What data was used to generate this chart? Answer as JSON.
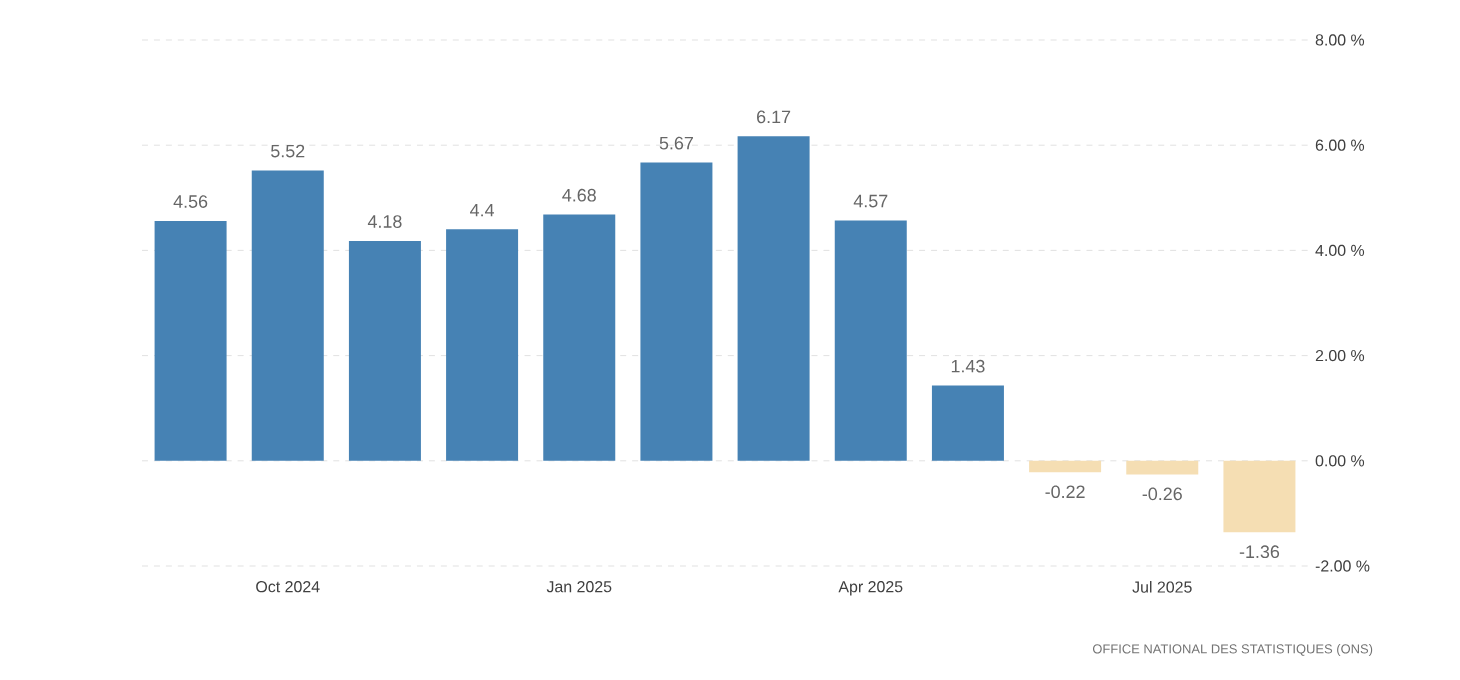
{
  "chart_data": {
    "type": "bar",
    "categories": [
      null,
      "Oct 2024",
      null,
      null,
      "Jan 2025",
      null,
      null,
      "Apr 2025",
      null,
      null,
      "Jul 2025",
      null
    ],
    "values": [
      4.56,
      5.52,
      4.18,
      4.4,
      4.68,
      5.67,
      6.17,
      4.57,
      1.43,
      -0.22,
      -0.26,
      -1.36
    ],
    "value_labels": [
      "4.56",
      "5.52",
      "4.18",
      "4.4",
      "4.68",
      "5.67",
      "6.17",
      "4.57",
      "1.43",
      "-0.22",
      "-0.26",
      "-1.36"
    ],
    "colors": [
      "#4682b4",
      "#4682b4",
      "#4682b4",
      "#4682b4",
      "#4682b4",
      "#4682b4",
      "#4682b4",
      "#4682b4",
      "#4682b4",
      "#f5deb3",
      "#f5deb3",
      "#f5deb3"
    ],
    "ylim": [
      -2,
      8
    ],
    "yticks": [
      {
        "value": -2,
        "label": "-2.00 %"
      },
      {
        "value": 0,
        "label": "0.00 %"
      },
      {
        "value": 2,
        "label": "2.00 %"
      },
      {
        "value": 4,
        "label": "4.00 %"
      },
      {
        "value": 6,
        "label": "6.00 %"
      },
      {
        "value": 8,
        "label": "8.00 %"
      }
    ],
    "grid": "y",
    "annotations": [
      "OFFICE NATIONAL DES STATISTIQUES (ONS)"
    ]
  }
}
